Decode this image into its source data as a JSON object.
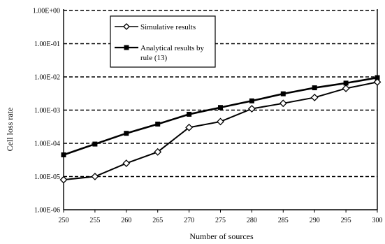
{
  "chart_data": {
    "type": "line",
    "title": "",
    "xlabel": "Number of sources",
    "ylabel": "Cell loss rate",
    "x": [
      250,
      255,
      260,
      265,
      270,
      275,
      280,
      285,
      290,
      295,
      300
    ],
    "xlim": [
      250,
      300
    ],
    "ylim": [
      1e-06,
      1
    ],
    "yscale": "log",
    "grid": "horizontal dashed",
    "legend_position": "top-left inside plot",
    "x_tick_labels": [
      "250",
      "255",
      "260",
      "265",
      "270",
      "275",
      "280",
      "285",
      "290",
      "295",
      "300"
    ],
    "y_ticks": [
      1e-06,
      1e-05,
      0.0001,
      0.001,
      0.01,
      0.1,
      1
    ],
    "y_tick_labels": [
      "1.00E-06",
      "1.00E-05",
      "1.00E-04",
      "1.00E-03",
      "1.00E-02",
      "1.00E-01",
      "1.00E+00"
    ],
    "series": [
      {
        "name": "Simulative results",
        "marker": "open-diamond",
        "color": "#000000",
        "values": [
          8e-06,
          1e-05,
          2.5e-05,
          5.5e-05,
          0.0003,
          0.00045,
          0.0011,
          0.0016,
          0.0024,
          0.0045,
          0.007
        ]
      },
      {
        "name": "Analytical results by rule (13)",
        "legend_lines": [
          "Analytical results by",
          "rule (13)"
        ],
        "marker": "filled-square",
        "color": "#000000",
        "values": [
          4.5e-05,
          9.5e-05,
          0.0002,
          0.00038,
          0.00075,
          0.0012,
          0.0019,
          0.0031,
          0.0047,
          0.0065,
          0.0095
        ]
      }
    ]
  }
}
